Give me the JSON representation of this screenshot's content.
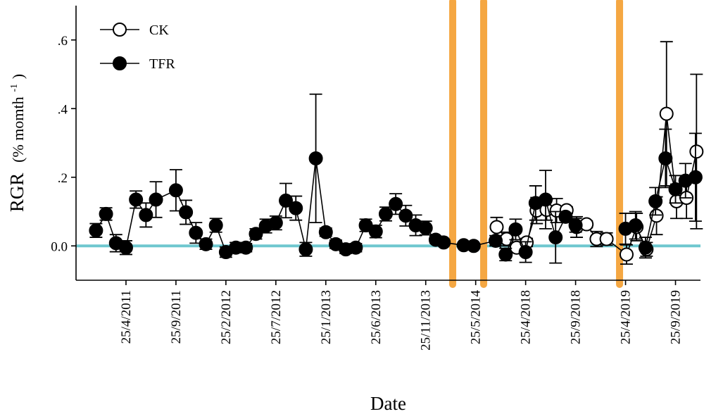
{
  "chart_data": {
    "type": "scatter",
    "xlabel": "Date",
    "ylabel": "RGR",
    "ylabel_unit_prefix": "(% momth",
    "ylabel_unit_exp": "-1",
    "ylabel_unit_suffix": ")",
    "ylim": [
      -0.1,
      0.7
    ],
    "yticks": [
      0.0,
      0.2,
      0.4,
      0.6
    ],
    "ytick_labels": [
      "0.0",
      ".2",
      ".4",
      ".6"
    ],
    "xlim": [
      0,
      62.5
    ],
    "xticks": [
      {
        "x": 5,
        "label": "25/4/2011"
      },
      {
        "x": 10,
        "label": "25/9/2011"
      },
      {
        "x": 15,
        "label": "25/2/2012"
      },
      {
        "x": 20,
        "label": "25/7/2012"
      },
      {
        "x": 25,
        "label": "25/1/2013"
      },
      {
        "x": 30,
        "label": "25/6/2013"
      },
      {
        "x": 35,
        "label": "25/11/2013"
      },
      {
        "x": 40,
        "label": "25/5/2014"
      },
      {
        "x": 45,
        "label": "25/4/2018"
      },
      {
        "x": 50,
        "label": "25/9/2018"
      },
      {
        "x": 55,
        "label": "25/4/2019"
      },
      {
        "x": 60,
        "label": "25/9/2019"
      }
    ],
    "reference_line": {
      "y": 0.0,
      "color": "#6fc7cf"
    },
    "breaks": [
      {
        "x": 37.7,
        "color": "#f5a742"
      },
      {
        "x": 40.8,
        "color": "#f5a742"
      },
      {
        "x": 54.4,
        "color": "#f5a742"
      }
    ],
    "series": [
      {
        "name": "CK",
        "marker": "open-circle",
        "points": [
          {
            "x": 42.1,
            "y": 0.055,
            "err": 0.028
          },
          {
            "x": 43.1,
            "y": 0.02,
            "err": 0.02
          },
          {
            "x": 44.1,
            "y": -0.005,
            "err": 0.015
          },
          {
            "x": 45.1,
            "y": 0.01,
            "err": 0.012
          },
          {
            "x": 46.1,
            "y": 0.103,
            "err": 0.038
          },
          {
            "x": 47.1,
            "y": 0.105,
            "err": 0.03
          },
          {
            "x": 48.1,
            "y": 0.103,
            "err": 0.035
          },
          {
            "x": 49.1,
            "y": 0.104,
            "err": 0.01
          },
          {
            "x": 50.1,
            "y": 0.055,
            "err": 0.03
          },
          {
            "x": 51.1,
            "y": 0.063,
            "err": 0.01
          },
          {
            "x": 52.1,
            "y": 0.02,
            "err": 0.022
          },
          {
            "x": 53.1,
            "y": 0.02,
            "err": 0.018
          },
          {
            "x": 55.1,
            "y": -0.025,
            "err": 0.028
          },
          {
            "x": 56.1,
            "y": 0.055,
            "err": 0.04
          },
          {
            "x": 57.1,
            "y": -0.01,
            "err": 0.02
          },
          {
            "x": 58.1,
            "y": 0.088,
            "err": 0.055
          },
          {
            "x": 59.1,
            "y": 0.385,
            "err": 0.21
          },
          {
            "x": 60.1,
            "y": 0.13,
            "err": 0.05
          },
          {
            "x": 61.1,
            "y": 0.14,
            "err": 0.06
          },
          {
            "x": 62.1,
            "y": 0.275,
            "err": 0.225
          }
        ]
      },
      {
        "name": "TFR",
        "marker": "filled-circle",
        "points": [
          {
            "x": 2,
            "y": 0.045,
            "err": 0.02
          },
          {
            "x": 3,
            "y": 0.093,
            "err": 0.018
          },
          {
            "x": 4,
            "y": 0.008,
            "err": 0.025
          },
          {
            "x": 5,
            "y": -0.005,
            "err": 0.02
          },
          {
            "x": 6,
            "y": 0.135,
            "err": 0.025
          },
          {
            "x": 7,
            "y": 0.09,
            "err": 0.035
          },
          {
            "x": 8,
            "y": 0.135,
            "err": 0.052
          },
          {
            "x": 10,
            "y": 0.162,
            "err": 0.06
          },
          {
            "x": 11,
            "y": 0.098,
            "err": 0.035
          },
          {
            "x": 12,
            "y": 0.038,
            "err": 0.03
          },
          {
            "x": 13,
            "y": 0.005,
            "err": 0.015
          },
          {
            "x": 14,
            "y": 0.06,
            "err": 0.02
          },
          {
            "x": 15,
            "y": -0.018,
            "err": 0.015
          },
          {
            "x": 16,
            "y": -0.005,
            "err": 0.015
          },
          {
            "x": 17,
            "y": -0.005,
            "err": 0.012
          },
          {
            "x": 18,
            "y": 0.035,
            "err": 0.015
          },
          {
            "x": 19,
            "y": 0.058,
            "err": 0.02
          },
          {
            "x": 20,
            "y": 0.067,
            "err": 0.02
          },
          {
            "x": 21,
            "y": 0.132,
            "err": 0.05
          },
          {
            "x": 22,
            "y": 0.11,
            "err": 0.035
          },
          {
            "x": 23,
            "y": -0.01,
            "err": 0.02
          },
          {
            "x": 24,
            "y": 0.255,
            "err": 0.187
          },
          {
            "x": 25,
            "y": 0.04,
            "err": 0.012
          },
          {
            "x": 26,
            "y": 0.005,
            "err": 0.012
          },
          {
            "x": 27,
            "y": -0.01,
            "err": 0.012
          },
          {
            "x": 28,
            "y": -0.005,
            "err": 0.012
          },
          {
            "x": 29,
            "y": 0.06,
            "err": 0.018
          },
          {
            "x": 30,
            "y": 0.042,
            "err": 0.018
          },
          {
            "x": 31,
            "y": 0.093,
            "err": 0.02
          },
          {
            "x": 32,
            "y": 0.122,
            "err": 0.03
          },
          {
            "x": 33,
            "y": 0.088,
            "err": 0.03
          },
          {
            "x": 34,
            "y": 0.06,
            "err": 0.03
          },
          {
            "x": 35,
            "y": 0.052,
            "err": 0.02
          },
          {
            "x": 36,
            "y": 0.018,
            "err": 0.01
          },
          {
            "x": 36.8,
            "y": 0.01,
            "err": 0.008
          },
          {
            "x": 38.8,
            "y": 0.002,
            "err": 0.006
          },
          {
            "x": 39.8,
            "y": 0.0,
            "err": 0.006
          },
          {
            "x": 42,
            "y": 0.015,
            "err": 0.015
          },
          {
            "x": 43,
            "y": -0.025,
            "err": 0.018
          },
          {
            "x": 44,
            "y": 0.048,
            "err": 0.03
          },
          {
            "x": 45,
            "y": -0.018,
            "err": 0.03
          },
          {
            "x": 46,
            "y": 0.125,
            "err": 0.05
          },
          {
            "x": 47,
            "y": 0.135,
            "err": 0.085
          },
          {
            "x": 48,
            "y": 0.025,
            "err": 0.075
          },
          {
            "x": 49,
            "y": 0.085,
            "err": 0.01
          },
          {
            "x": 50,
            "y": 0.06,
            "err": 0.02
          },
          {
            "x": 55,
            "y": 0.05,
            "err": 0.045
          },
          {
            "x": 56,
            "y": 0.06,
            "err": 0.04
          },
          {
            "x": 57,
            "y": -0.005,
            "err": 0.03
          },
          {
            "x": 58,
            "y": 0.13,
            "err": 0.04
          },
          {
            "x": 59,
            "y": 0.255,
            "err": 0.085
          },
          {
            "x": 60,
            "y": 0.165,
            "err": 0.04
          },
          {
            "x": 61,
            "y": 0.19,
            "err": 0.05
          },
          {
            "x": 62,
            "y": 0.2,
            "err": 0.128
          }
        ]
      }
    ],
    "legend": {
      "placement": "top-left",
      "entries": [
        "CK",
        "TFR"
      ]
    }
  }
}
